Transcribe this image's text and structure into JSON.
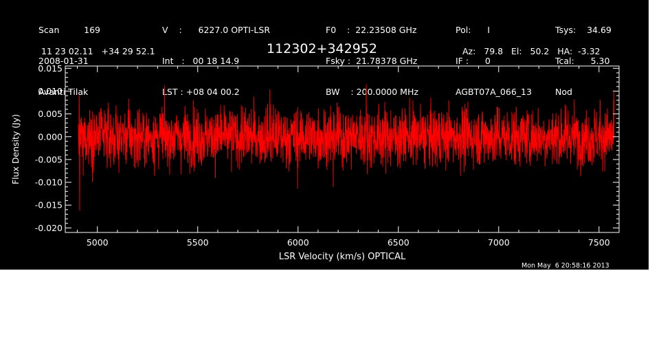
{
  "header": {
    "col1": [
      "Scan         169",
      "2008-01-31",
      "Avanti Tilak"
    ],
    "col2": [
      "V    :      6227.0 OPTI-LSR",
      "Int   :   00 18 14.9",
      "LST : +08 04 00.2"
    ],
    "col3": [
      "F0    :  22.23508 GHz",
      "Fsky :  21.78378 GHz",
      "BW    : 200.0000 MHz"
    ],
    "col4": [
      "Pol:      I",
      "IF :      0",
      "AGBT07A_066_13"
    ],
    "col5": [
      "Tsys:    34.69",
      "Tcal:      5.30",
      "Nod"
    ],
    "coords": "11 23 02.11   +34 29 52.1",
    "source": "112302+342952",
    "pointing": "Az:   79.8   El:   50.2   HA:  -3.32"
  },
  "timestamp": "Mon May  6 20:58:16 2013",
  "colors": {
    "background": "#000000",
    "axes": "#ffffff",
    "trace": "#ff0000"
  },
  "chart_data": {
    "type": "line",
    "title": "112302+342952",
    "xlabel": "LSR Velocity (km/s) OPTICAL",
    "ylabel": "Flux Density (Jy)",
    "xlim": [
      4840,
      7600
    ],
    "ylim": [
      -0.021,
      0.0155
    ],
    "xticks": [
      5000,
      5500,
      6000,
      6500,
      7000,
      7500
    ],
    "xtick_labels": [
      "5000",
      "5500",
      "6000",
      "6500",
      "7000",
      "7500"
    ],
    "yticks": [
      -0.02,
      -0.015,
      -0.01,
      -0.005,
      0.0,
      0.005,
      0.01,
      0.015
    ],
    "ytick_labels": [
      "-0.020",
      "-0.015",
      "-0.010",
      "-0.005",
      "0.000",
      "0.005",
      "0.010",
      "0.015"
    ],
    "grid": false,
    "legend": "none",
    "series": [
      {
        "x_range": [
          4905,
          7575
        ],
        "noise_rms": 0.0032,
        "features": [
          {
            "x": 4912,
            "y": -0.0162
          },
          {
            "x": 4930,
            "y": -0.0085
          },
          {
            "x": 5860,
            "y": 0.0104
          },
          {
            "x": 5998,
            "y": -0.0114
          },
          {
            "x": 6175,
            "y": -0.011
          },
          {
            "x": 6340,
            "y": 0.0115
          },
          {
            "x": 7575,
            "y": 0.0098
          }
        ]
      }
    ]
  }
}
